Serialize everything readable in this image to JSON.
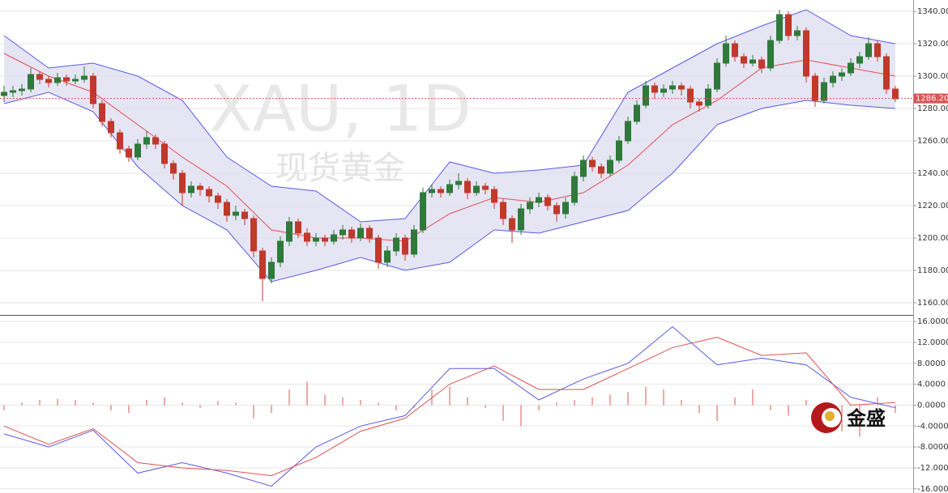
{
  "chart_data": [
    {
      "type": "candlestick",
      "title": "XAU, 1D",
      "subtitle": "现货黄金",
      "ylim": [
        1153,
        1347
      ],
      "yticks": [
        {
          "value": 1160,
          "label": "1160.00"
        },
        {
          "value": 1180,
          "label": "1180.00"
        },
        {
          "value": 1200,
          "label": "1200.00"
        },
        {
          "value": 1220,
          "label": "1220.00"
        },
        {
          "value": 1240,
          "label": "1240.00"
        },
        {
          "value": 1260,
          "label": "1260.00"
        },
        {
          "value": 1280,
          "label": "1280.00"
        },
        {
          "value": 1300,
          "label": "1300.00"
        },
        {
          "value": 1320,
          "label": "1320.00"
        },
        {
          "value": 1340,
          "label": "1340.00"
        }
      ],
      "grid": true,
      "up_color": "#2f7a3a",
      "down_color": "#c0392b",
      "last_price": {
        "value": 1286.2,
        "label": "1286.20",
        "color": "#d9534f"
      },
      "ohlc": [
        [
          1288,
          1294,
          1284,
          1290
        ],
        [
          1290,
          1294,
          1287,
          1291
        ],
        [
          1291,
          1295,
          1288,
          1292
        ],
        [
          1292,
          1305,
          1290,
          1301
        ],
        [
          1301,
          1303,
          1295,
          1298
        ],
        [
          1298,
          1300,
          1293,
          1296
        ],
        [
          1296,
          1302,
          1294,
          1299
        ],
        [
          1299,
          1301,
          1294,
          1297
        ],
        [
          1297,
          1301,
          1295,
          1298
        ],
        [
          1298,
          1306,
          1296,
          1300
        ],
        [
          1300,
          1302,
          1280,
          1283
        ],
        [
          1283,
          1285,
          1269,
          1272
        ],
        [
          1272,
          1274,
          1262,
          1265
        ],
        [
          1265,
          1267,
          1252,
          1255
        ],
        [
          1255,
          1257,
          1247,
          1250
        ],
        [
          1250,
          1261,
          1248,
          1258
        ],
        [
          1258,
          1266,
          1255,
          1262
        ],
        [
          1262,
          1264,
          1255,
          1258
        ],
        [
          1258,
          1260,
          1243,
          1246
        ],
        [
          1246,
          1248,
          1236,
          1240
        ],
        [
          1240,
          1242,
          1220,
          1228
        ],
        [
          1228,
          1235,
          1225,
          1232
        ],
        [
          1232,
          1234,
          1226,
          1230
        ],
        [
          1230,
          1232,
          1222,
          1226
        ],
        [
          1226,
          1228,
          1218,
          1222
        ],
        [
          1222,
          1224,
          1210,
          1214
        ],
        [
          1214,
          1220,
          1211,
          1216
        ],
        [
          1216,
          1218,
          1208,
          1212
        ],
        [
          1212,
          1214,
          1188,
          1192
        ],
        [
          1192,
          1194,
          1161,
          1175
        ],
        [
          1175,
          1188,
          1172,
          1185
        ],
        [
          1185,
          1201,
          1182,
          1198
        ],
        [
          1198,
          1213,
          1195,
          1210
        ],
        [
          1210,
          1212,
          1200,
          1203
        ],
        [
          1203,
          1206,
          1195,
          1198
        ],
        [
          1198,
          1203,
          1195,
          1200
        ],
        [
          1200,
          1202,
          1195,
          1198
        ],
        [
          1198,
          1205,
          1196,
          1202
        ],
        [
          1202,
          1208,
          1199,
          1205
        ],
        [
          1205,
          1207,
          1197,
          1200
        ],
        [
          1200,
          1209,
          1198,
          1206
        ],
        [
          1206,
          1208,
          1197,
          1200
        ],
        [
          1200,
          1202,
          1181,
          1185
        ],
        [
          1185,
          1195,
          1182,
          1192
        ],
        [
          1192,
          1203,
          1189,
          1200
        ],
        [
          1200,
          1202,
          1186,
          1190
        ],
        [
          1190,
          1208,
          1188,
          1205
        ],
        [
          1205,
          1231,
          1203,
          1228
        ],
        [
          1228,
          1233,
          1225,
          1230
        ],
        [
          1230,
          1232,
          1225,
          1228
        ],
        [
          1228,
          1236,
          1226,
          1233
        ],
        [
          1233,
          1240,
          1230,
          1235
        ],
        [
          1235,
          1237,
          1224,
          1228
        ],
        [
          1228,
          1235,
          1226,
          1232
        ],
        [
          1232,
          1234,
          1227,
          1230
        ],
        [
          1230,
          1232,
          1218,
          1222
        ],
        [
          1222,
          1224,
          1208,
          1212
        ],
        [
          1212,
          1214,
          1197,
          1205
        ],
        [
          1205,
          1221,
          1202,
          1218
        ],
        [
          1218,
          1225,
          1215,
          1222
        ],
        [
          1222,
          1228,
          1219,
          1225
        ],
        [
          1225,
          1227,
          1217,
          1220
        ],
        [
          1220,
          1222,
          1210,
          1215
        ],
        [
          1215,
          1225,
          1212,
          1222
        ],
        [
          1222,
          1241,
          1220,
          1238
        ],
        [
          1238,
          1251,
          1235,
          1248
        ],
        [
          1248,
          1250,
          1241,
          1244
        ],
        [
          1244,
          1246,
          1237,
          1240
        ],
        [
          1240,
          1251,
          1238,
          1248
        ],
        [
          1248,
          1263,
          1246,
          1260
        ],
        [
          1260,
          1275,
          1258,
          1272
        ],
        [
          1272,
          1285,
          1270,
          1282
        ],
        [
          1282,
          1297,
          1280,
          1294
        ],
        [
          1294,
          1296,
          1286,
          1290
        ],
        [
          1290,
          1295,
          1287,
          1292
        ],
        [
          1292,
          1297,
          1289,
          1294
        ],
        [
          1294,
          1296,
          1288,
          1292
        ],
        [
          1292,
          1294,
          1280,
          1284
        ],
        [
          1284,
          1286,
          1278,
          1282
        ],
        [
          1282,
          1295,
          1280,
          1292
        ],
        [
          1292,
          1311,
          1290,
          1308
        ],
        [
          1308,
          1325,
          1306,
          1320
        ],
        [
          1320,
          1322,
          1309,
          1312
        ],
        [
          1312,
          1314,
          1305,
          1308
        ],
        [
          1308,
          1313,
          1306,
          1310
        ],
        [
          1310,
          1312,
          1302,
          1305
        ],
        [
          1305,
          1325,
          1303,
          1322
        ],
        [
          1322,
          1341,
          1320,
          1338
        ],
        [
          1338,
          1340,
          1322,
          1325
        ],
        [
          1325,
          1331,
          1322,
          1328
        ],
        [
          1328,
          1330,
          1296,
          1300
        ],
        [
          1300,
          1302,
          1281,
          1285
        ],
        [
          1285,
          1299,
          1283,
          1296
        ],
        [
          1296,
          1303,
          1293,
          1300
        ],
        [
          1300,
          1305,
          1297,
          1302
        ],
        [
          1302,
          1311,
          1300,
          1308
        ],
        [
          1308,
          1315,
          1305,
          1312
        ],
        [
          1312,
          1324,
          1310,
          1320
        ],
        [
          1320,
          1322,
          1309,
          1312
        ],
        [
          1312,
          1314,
          1289,
          1292
        ],
        [
          1292,
          1294,
          1284,
          1286
        ]
      ],
      "bands": {
        "x": [
          0,
          5,
          10,
          15,
          20,
          25,
          30,
          35,
          40,
          45,
          50,
          55,
          60,
          65,
          70,
          75,
          80,
          85,
          90,
          95,
          100
        ],
        "fill": "#dddcf0",
        "upper": {
          "color": "#5a5ae0",
          "values": [
            1325,
            1305,
            1308,
            1300,
            1285,
            1250,
            1232,
            1229,
            1210,
            1212,
            1247,
            1240,
            1242,
            1245,
            1290,
            1305,
            1320,
            1331,
            1341,
            1325,
            1320
          ]
        },
        "middle": {
          "color": "#e05050",
          "values": [
            1314,
            1300,
            1290,
            1270,
            1250,
            1232,
            1205,
            1200,
            1200,
            1198,
            1215,
            1225,
            1222,
            1228,
            1245,
            1270,
            1285,
            1305,
            1310,
            1305,
            1300
          ]
        },
        "lower": {
          "color": "#5a5ae0",
          "values": [
            1283,
            1290,
            1278,
            1244,
            1220,
            1205,
            1173,
            1180,
            1188,
            1180,
            1185,
            1205,
            1203,
            1210,
            1217,
            1240,
            1270,
            1280,
            1285,
            1282,
            1280
          ]
        }
      }
    },
    {
      "type": "macd",
      "ylim": [
        -16.5,
        16.8
      ],
      "yticks": [
        {
          "value": -16,
          "label": "-16.0000"
        },
        {
          "value": -12,
          "label": "-12.0000"
        },
        {
          "value": -8,
          "label": "-8.0000"
        },
        {
          "value": -4,
          "label": "-4.0000"
        },
        {
          "value": 0,
          "label": "0.0000"
        },
        {
          "value": 4,
          "label": "4.0000"
        },
        {
          "value": 8,
          "label": "8.0000"
        },
        {
          "value": 12,
          "label": "12.0000"
        },
        {
          "value": 16,
          "label": "16.0000"
        }
      ],
      "grid": true,
      "x": [
        0,
        5,
        10,
        15,
        20,
        25,
        30,
        35,
        40,
        45,
        50,
        55,
        60,
        65,
        70,
        75,
        80,
        85,
        90,
        95,
        100
      ],
      "series": [
        {
          "color": "#5a5ae0",
          "values": [
            -5.5,
            -8,
            -4.8,
            -13,
            -11,
            -13,
            -15.5,
            -8,
            -4,
            -2,
            7,
            7,
            1,
            5,
            8,
            15,
            7.7,
            9,
            7.7,
            1.5,
            -0.5
          ]
        },
        {
          "color": "#e05050",
          "values": [
            -4,
            -7.5,
            -4.5,
            -11,
            -12,
            -12.5,
            -13.5,
            -10,
            -5,
            -2.5,
            4,
            7.5,
            3,
            3,
            7,
            11,
            13,
            9.5,
            10,
            0,
            0.5
          ]
        }
      ],
      "histogram": {
        "color": "#e05050",
        "x": [
          0,
          2,
          4,
          6,
          8,
          10,
          12,
          14,
          16,
          18,
          20,
          22,
          24,
          26,
          28,
          30,
          32,
          34,
          36,
          38,
          40,
          42,
          44,
          46,
          48,
          50,
          52,
          54,
          56,
          58,
          60,
          62,
          64,
          66,
          68,
          70,
          72,
          74,
          76,
          78,
          80,
          82,
          84,
          86,
          88,
          90,
          92,
          94,
          96,
          98,
          100
        ],
        "values": [
          -1,
          0.5,
          1,
          1.2,
          1,
          0.5,
          -1,
          -1.5,
          1,
          1.5,
          0.5,
          -0.5,
          0.8,
          0.5,
          -2.5,
          -1.5,
          3,
          4.5,
          2,
          1.5,
          1,
          0.5,
          -1,
          -0.5,
          3,
          3.5,
          1.5,
          -0.5,
          -3,
          -4,
          -1,
          0.5,
          1,
          1.5,
          2,
          2.5,
          3.5,
          3,
          1,
          -1.5,
          -3,
          1.5,
          3,
          -1,
          -2,
          1,
          -1,
          -5,
          -6,
          1.5,
          -1.5
        ]
      }
    }
  ],
  "logo": "金盛"
}
